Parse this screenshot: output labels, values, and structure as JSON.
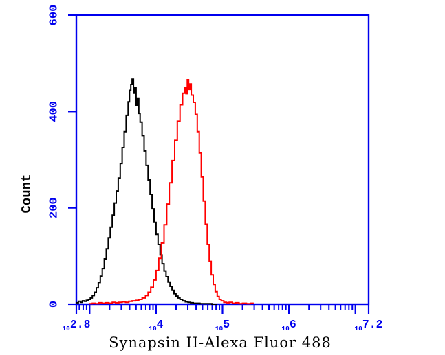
{
  "chart_data": {
    "type": "line",
    "chart_kind": "flow_cytometry_histogram",
    "xlabel": "Synapsin II-Alexa Fluor 488",
    "ylabel": "Count",
    "grid": false,
    "legend": "none",
    "colors": {
      "axis": "#0000ee",
      "black_series": "#000000",
      "red_series": "#ff0000",
      "background": "#ffffff",
      "xlabel_text": "#000000"
    },
    "x_axis": {
      "scale": "log10",
      "min_exponent": 2.8,
      "max_exponent": 7.2,
      "base_label": "10",
      "labeled_ticks": [
        {
          "exponent_label": "2.8",
          "value": 2.8
        },
        {
          "exponent_label": "4",
          "value": 4
        },
        {
          "exponent_label": "5",
          "value": 5
        },
        {
          "exponent_label": "6",
          "value": 6
        },
        {
          "exponent_label": "7.2",
          "value": 7.2
        }
      ],
      "major_tick_exponents": [
        2.8,
        3,
        4,
        5,
        6,
        7,
        7.2
      ],
      "minor_ticks_per_decade": [
        2,
        3,
        4,
        5,
        6,
        7,
        8,
        9
      ]
    },
    "y_axis": {
      "min": 0,
      "max": 600,
      "ticks": [
        0,
        200,
        400,
        600
      ]
    },
    "series": [
      {
        "name": "black-histogram",
        "color_key": "black_series",
        "peak_log10_x": 3.64,
        "peak_count": 467,
        "points_log10_x_count": [
          [
            2.8,
            3
          ],
          [
            2.83,
            6
          ],
          [
            2.86,
            4
          ],
          [
            2.89,
            7
          ],
          [
            2.92,
            6
          ],
          [
            2.95,
            8
          ],
          [
            2.98,
            10
          ],
          [
            3.01,
            13
          ],
          [
            3.04,
            18
          ],
          [
            3.07,
            25
          ],
          [
            3.1,
            34
          ],
          [
            3.13,
            45
          ],
          [
            3.16,
            58
          ],
          [
            3.19,
            74
          ],
          [
            3.22,
            94
          ],
          [
            3.25,
            115
          ],
          [
            3.28,
            138
          ],
          [
            3.31,
            160
          ],
          [
            3.34,
            185
          ],
          [
            3.37,
            210
          ],
          [
            3.4,
            235
          ],
          [
            3.43,
            262
          ],
          [
            3.46,
            292
          ],
          [
            3.49,
            325
          ],
          [
            3.52,
            358
          ],
          [
            3.55,
            392
          ],
          [
            3.58,
            420
          ],
          [
            3.6,
            444
          ],
          [
            3.62,
            456
          ],
          [
            3.64,
            467
          ],
          [
            3.66,
            438
          ],
          [
            3.68,
            450
          ],
          [
            3.7,
            413
          ],
          [
            3.72,
            428
          ],
          [
            3.74,
            396
          ],
          [
            3.76,
            378
          ],
          [
            3.79,
            350
          ],
          [
            3.82,
            318
          ],
          [
            3.85,
            288
          ],
          [
            3.88,
            258
          ],
          [
            3.91,
            228
          ],
          [
            3.94,
            198
          ],
          [
            3.97,
            170
          ],
          [
            4.0,
            145
          ],
          [
            4.03,
            124
          ],
          [
            4.06,
            102
          ],
          [
            4.09,
            84
          ],
          [
            4.12,
            69
          ],
          [
            4.15,
            57
          ],
          [
            4.18,
            46
          ],
          [
            4.21,
            37
          ],
          [
            4.24,
            29
          ],
          [
            4.27,
            22
          ],
          [
            4.3,
            17
          ],
          [
            4.33,
            13
          ],
          [
            4.36,
            10
          ],
          [
            4.4,
            7
          ],
          [
            4.44,
            5
          ],
          [
            4.48,
            4
          ],
          [
            4.52,
            3
          ],
          [
            4.56,
            2
          ],
          [
            4.6,
            2
          ],
          [
            4.66,
            1
          ],
          [
            4.72,
            1
          ],
          [
            4.78,
            1
          ],
          [
            4.84,
            0
          ],
          [
            4.92,
            0
          ]
        ]
      },
      {
        "name": "red-histogram",
        "color_key": "red_series",
        "peak_log10_x": 4.47,
        "peak_count": 466,
        "points_log10_x_count": [
          [
            2.99,
            1
          ],
          [
            3.04,
            2
          ],
          [
            3.09,
            1
          ],
          [
            3.14,
            3
          ],
          [
            3.19,
            2
          ],
          [
            3.24,
            3
          ],
          [
            3.29,
            2
          ],
          [
            3.34,
            4
          ],
          [
            3.39,
            3
          ],
          [
            3.44,
            4
          ],
          [
            3.49,
            5
          ],
          [
            3.54,
            4
          ],
          [
            3.59,
            6
          ],
          [
            3.64,
            7
          ],
          [
            3.69,
            8
          ],
          [
            3.74,
            10
          ],
          [
            3.79,
            13
          ],
          [
            3.84,
            18
          ],
          [
            3.88,
            25
          ],
          [
            3.92,
            35
          ],
          [
            3.96,
            50
          ],
          [
            4.0,
            70
          ],
          [
            4.04,
            95
          ],
          [
            4.08,
            127
          ],
          [
            4.12,
            165
          ],
          [
            4.16,
            208
          ],
          [
            4.2,
            252
          ],
          [
            4.24,
            298
          ],
          [
            4.28,
            340
          ],
          [
            4.32,
            380
          ],
          [
            4.36,
            414
          ],
          [
            4.4,
            438
          ],
          [
            4.43,
            450
          ],
          [
            4.45,
            437
          ],
          [
            4.47,
            466
          ],
          [
            4.49,
            446
          ],
          [
            4.51,
            457
          ],
          [
            4.53,
            434
          ],
          [
            4.56,
            419
          ],
          [
            4.59,
            394
          ],
          [
            4.62,
            358
          ],
          [
            4.65,
            314
          ],
          [
            4.68,
            264
          ],
          [
            4.71,
            214
          ],
          [
            4.74,
            166
          ],
          [
            4.77,
            124
          ],
          [
            4.8,
            89
          ],
          [
            4.83,
            61
          ],
          [
            4.86,
            41
          ],
          [
            4.89,
            26
          ],
          [
            4.92,
            16
          ],
          [
            4.95,
            10
          ],
          [
            4.98,
            7
          ],
          [
            5.02,
            4
          ],
          [
            5.06,
            3
          ],
          [
            5.1,
            4
          ],
          [
            5.15,
            2
          ],
          [
            5.2,
            3
          ],
          [
            5.25,
            1
          ],
          [
            5.3,
            2
          ],
          [
            5.36,
            1
          ],
          [
            5.42,
            2
          ],
          [
            5.46,
            0
          ]
        ]
      }
    ]
  }
}
